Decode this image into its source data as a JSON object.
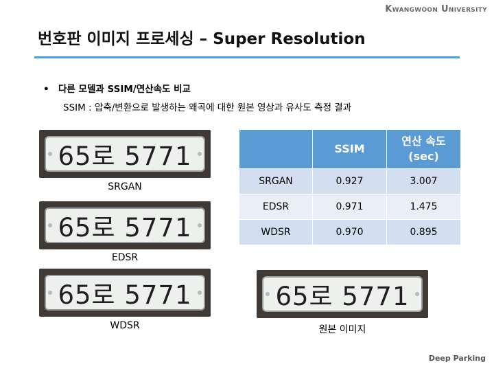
{
  "header": {
    "university": "Kwangwoon University",
    "title": "번호판 이미지 프로세싱 – Super Resolution"
  },
  "bullet": {
    "symbol": "•",
    "heading": "다른 모델과 SSIM/연산속도 비교",
    "description": "SSIM : 압축/변환으로 발생하는 왜곡에 대한 원본 영상과 유사도 측정 결과"
  },
  "plates": [
    {
      "text": "65로 5771",
      "label": "SRGAN"
    },
    {
      "text": "65로 5771",
      "label": "EDSR"
    },
    {
      "text": "65로 5771",
      "label": "WDSR"
    },
    {
      "text": "65로 5771",
      "label": "원본 이미지"
    }
  ],
  "table": {
    "headers": [
      "",
      "SSIM",
      "연산 속도",
      "(sec)"
    ],
    "rows": [
      {
        "model": "SRGAN",
        "ssim": "0.927",
        "speed": "3.007"
      },
      {
        "model": "EDSR",
        "ssim": "0.971",
        "speed": "1.475"
      },
      {
        "model": "WDSR",
        "ssim": "0.970",
        "speed": "0.895"
      }
    ]
  },
  "footer": {
    "text": "Deep Parking"
  },
  "colors": {
    "accent": "#4aa0d8",
    "table_header": "#5b9bd5",
    "table_row_odd": "#d3dff0",
    "table_row_even": "#eaeff7"
  }
}
